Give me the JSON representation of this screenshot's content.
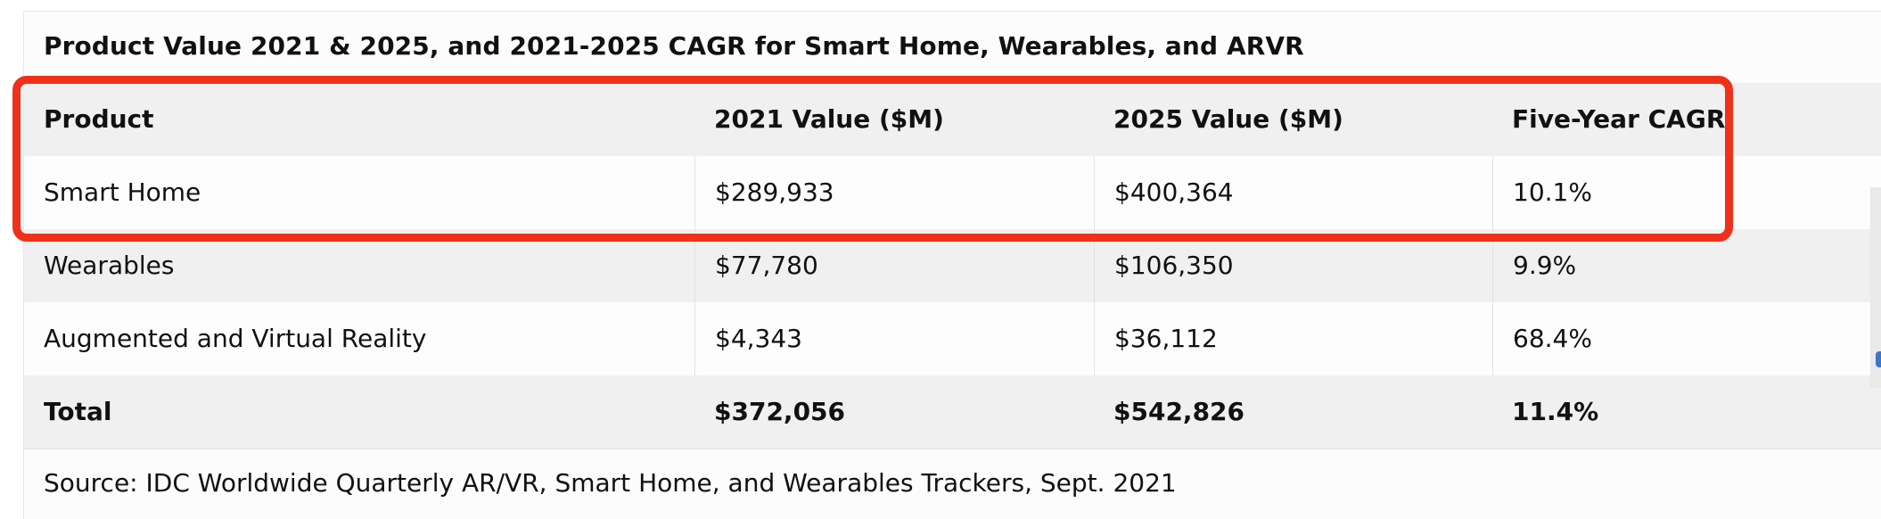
{
  "table": {
    "caption": "Product Value 2021 & 2025, and 2021-2025 CAGR for Smart Home, Wearables, and ARVR",
    "headers": [
      "Product",
      "2021 Value ($M)",
      "2025 Value ($M)",
      "Five-Year CAGR"
    ],
    "rows": [
      [
        "Smart Home",
        "$289,933",
        "$400,364",
        "10.1%"
      ],
      [
        "Wearables",
        "$77,780",
        "$106,350",
        "9.9%"
      ],
      [
        "Augmented and Virtual Reality",
        "$4,343",
        "$36,112",
        "68.4%"
      ]
    ],
    "total": [
      "Total",
      "$372,056",
      "$542,826",
      "11.4%"
    ],
    "source": "Source: IDC Worldwide Quarterly AR/VR, Smart Home, and Wearables Trackers, Sept. 2021"
  },
  "colors": {
    "highlight": "#f0301a",
    "shaded_row": "#f0f0f0",
    "scroll_nub": "#3a78c6"
  }
}
